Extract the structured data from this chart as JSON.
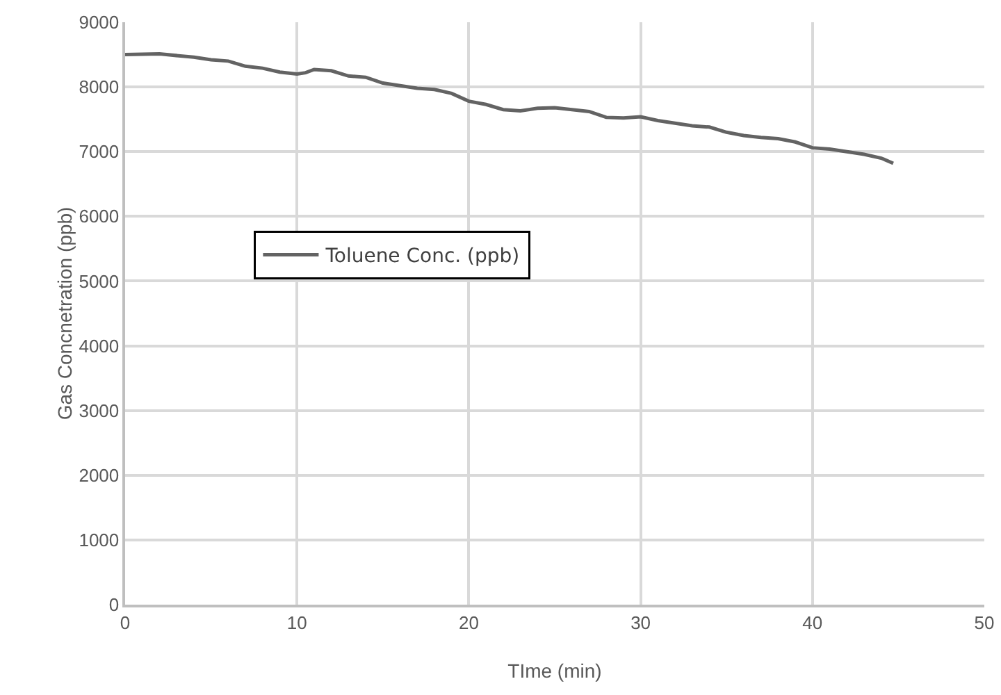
{
  "chart_data": {
    "type": "line",
    "xlabel": "TIme (min)",
    "ylabel": "Gas Concnetration (ppb)",
    "x": [
      0,
      2,
      4,
      5,
      6,
      7,
      8,
      9,
      10,
      10.5,
      11,
      12,
      13,
      14,
      15,
      16,
      17,
      18,
      19,
      20,
      21,
      22,
      23,
      24,
      25,
      26,
      27,
      28,
      29,
      30,
      31,
      32,
      33,
      34,
      35,
      36,
      37,
      38,
      39,
      40,
      41,
      42,
      43,
      44,
      44.7
    ],
    "series": [
      {
        "name": "Toluene Conc. (ppb)",
        "color": "#636363",
        "values": [
          8500,
          8510,
          8460,
          8420,
          8400,
          8320,
          8290,
          8230,
          8200,
          8220,
          8270,
          8250,
          8170,
          8150,
          8060,
          8020,
          7980,
          7960,
          7900,
          7780,
          7730,
          7650,
          7630,
          7670,
          7680,
          7650,
          7620,
          7530,
          7520,
          7540,
          7480,
          7440,
          7400,
          7380,
          7300,
          7250,
          7220,
          7200,
          7150,
          7060,
          7040,
          7000,
          6960,
          6900,
          6820
        ]
      }
    ],
    "xlim": [
      0,
      50
    ],
    "xticks": [
      0,
      10,
      20,
      30,
      40,
      50
    ],
    "ylim": [
      0,
      9000
    ],
    "yticks": [
      0,
      1000,
      2000,
      3000,
      4000,
      5000,
      6000,
      7000,
      8000,
      9000
    ],
    "grid": true,
    "legend": "left",
    "marker": "none",
    "line_style": "solid"
  }
}
